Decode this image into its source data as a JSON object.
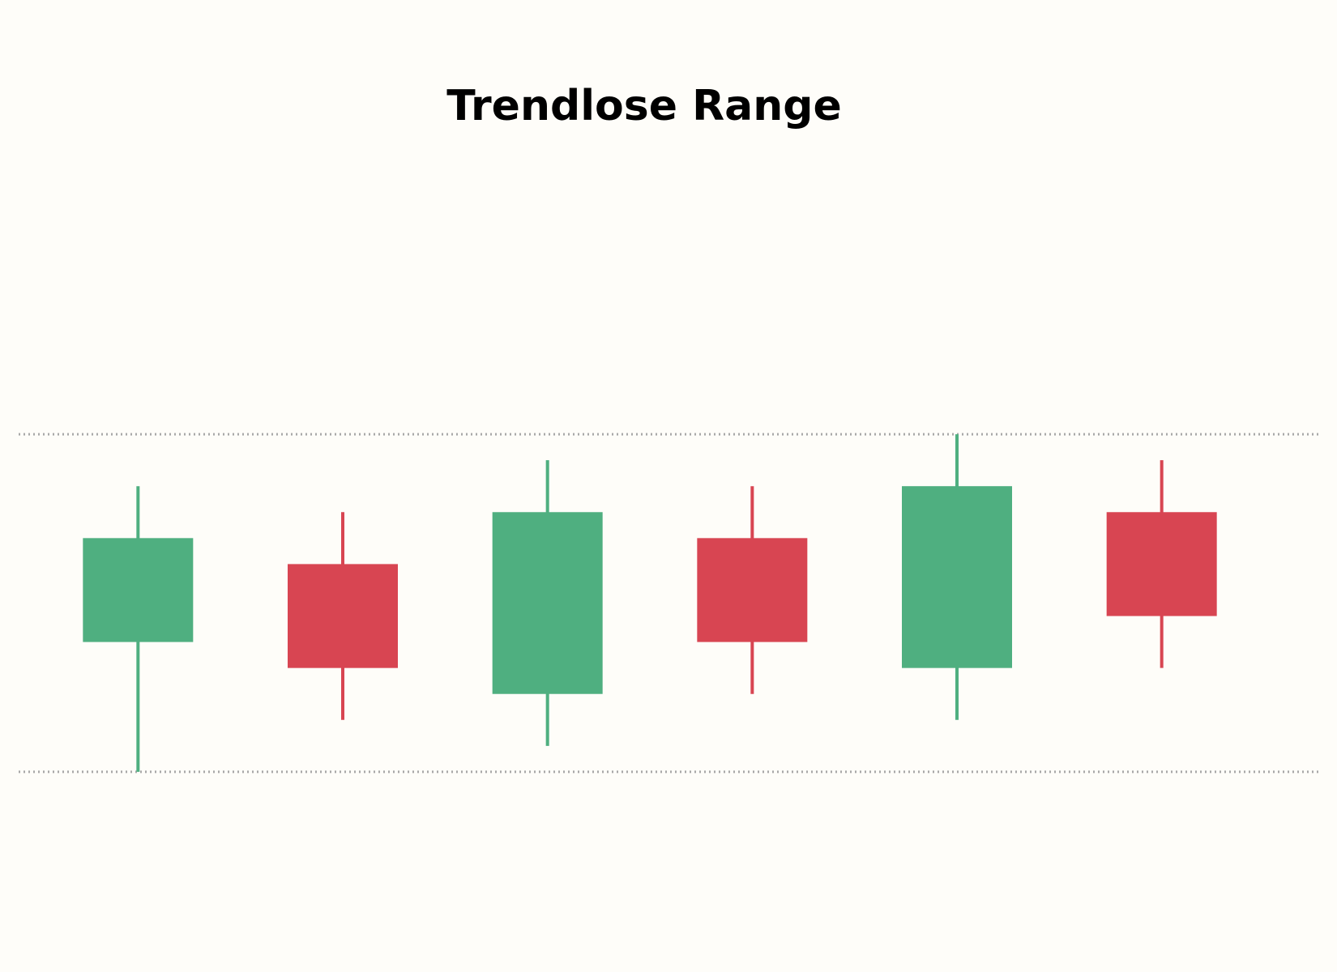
{
  "chart_data": {
    "type": "candlestick",
    "title": "Trendlose Range",
    "open": [
      5,
      8,
      3,
      9,
      4,
      10
    ],
    "high": [
      11,
      10,
      12,
      11,
      13,
      12
    ],
    "low": [
      0,
      2,
      1,
      3,
      2,
      4
    ],
    "close": [
      9,
      4,
      10,
      5,
      11,
      6
    ],
    "up_color": "#4faf80",
    "down_color": "#d84552",
    "levels": [
      13,
      0
    ],
    "level_color": "#a8a8a8",
    "ylim": [
      -1,
      14
    ]
  }
}
